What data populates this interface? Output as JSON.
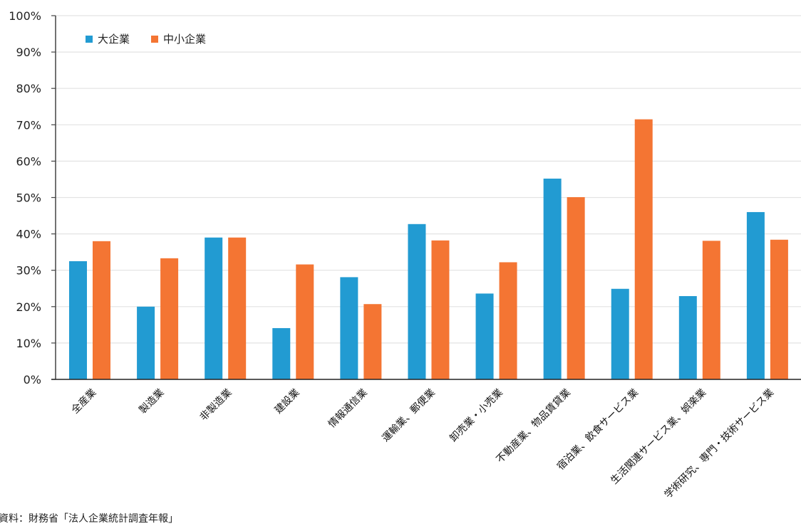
{
  "chart_data": {
    "type": "bar",
    "title": "",
    "xlabel": "",
    "ylabel": "",
    "ylim": [
      0,
      100
    ],
    "yticks": [
      "0%",
      "10%",
      "20%",
      "30%",
      "40%",
      "50%",
      "60%",
      "70%",
      "80%",
      "90%",
      "100%"
    ],
    "grid": true,
    "legend_position": "top-left inside",
    "categories": [
      "全産業",
      "製造業",
      "非製造業",
      "建設業",
      "情報通信業",
      "運輸業、郵便業",
      "卸売業・小売業",
      "不動産業、物品賃貸業",
      "宿泊業、飲食サービス業",
      "生活関連サービス業、娯楽業",
      "学術研究、専門・技術サービス業"
    ],
    "series": [
      {
        "name": "大企業",
        "color": "#229BD2",
        "values": [
          32.5,
          20.0,
          39.0,
          14.1,
          28.1,
          42.7,
          23.6,
          55.2,
          24.9,
          22.9,
          46.0
        ]
      },
      {
        "name": "中小企業",
        "color": "#F47533",
        "values": [
          38.0,
          33.3,
          39.0,
          31.6,
          20.7,
          38.2,
          32.2,
          50.1,
          71.5,
          38.1,
          38.4
        ]
      }
    ]
  },
  "legend": {
    "items": [
      {
        "label": "大企業",
        "color": "#229BD2"
      },
      {
        "label": "中小企業",
        "color": "#F47533"
      }
    ]
  },
  "source_note": "資料：財務省「法人企業統計調査年報」"
}
